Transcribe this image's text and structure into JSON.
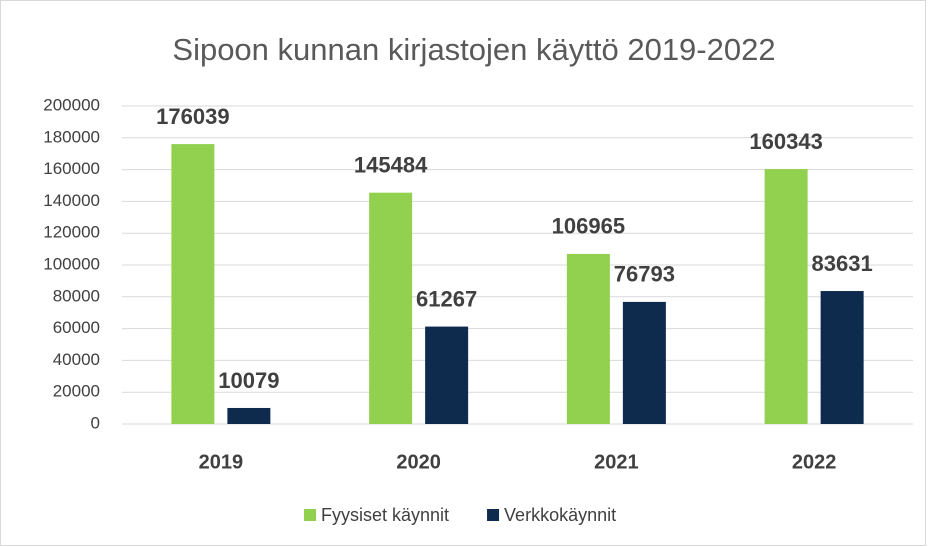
{
  "chart_data": {
    "type": "bar",
    "title": "Sipoon kunnan kirjastojen käyttö 2019-2022",
    "categories": [
      "2019",
      "2020",
      "2021",
      "2022"
    ],
    "series": [
      {
        "name": "Fyysiset käynnit",
        "color": "#92d050",
        "values": [
          176039,
          145484,
          106965,
          160343
        ]
      },
      {
        "name": "Verkkokäynnit",
        "color": "#0e2a4c",
        "values": [
          10079,
          61267,
          76793,
          83631
        ]
      }
    ],
    "ylim": [
      0,
      200000
    ],
    "yticks": [
      0,
      20000,
      40000,
      60000,
      80000,
      100000,
      120000,
      140000,
      160000,
      180000,
      200000
    ],
    "grid": true,
    "legend": "bottom"
  }
}
